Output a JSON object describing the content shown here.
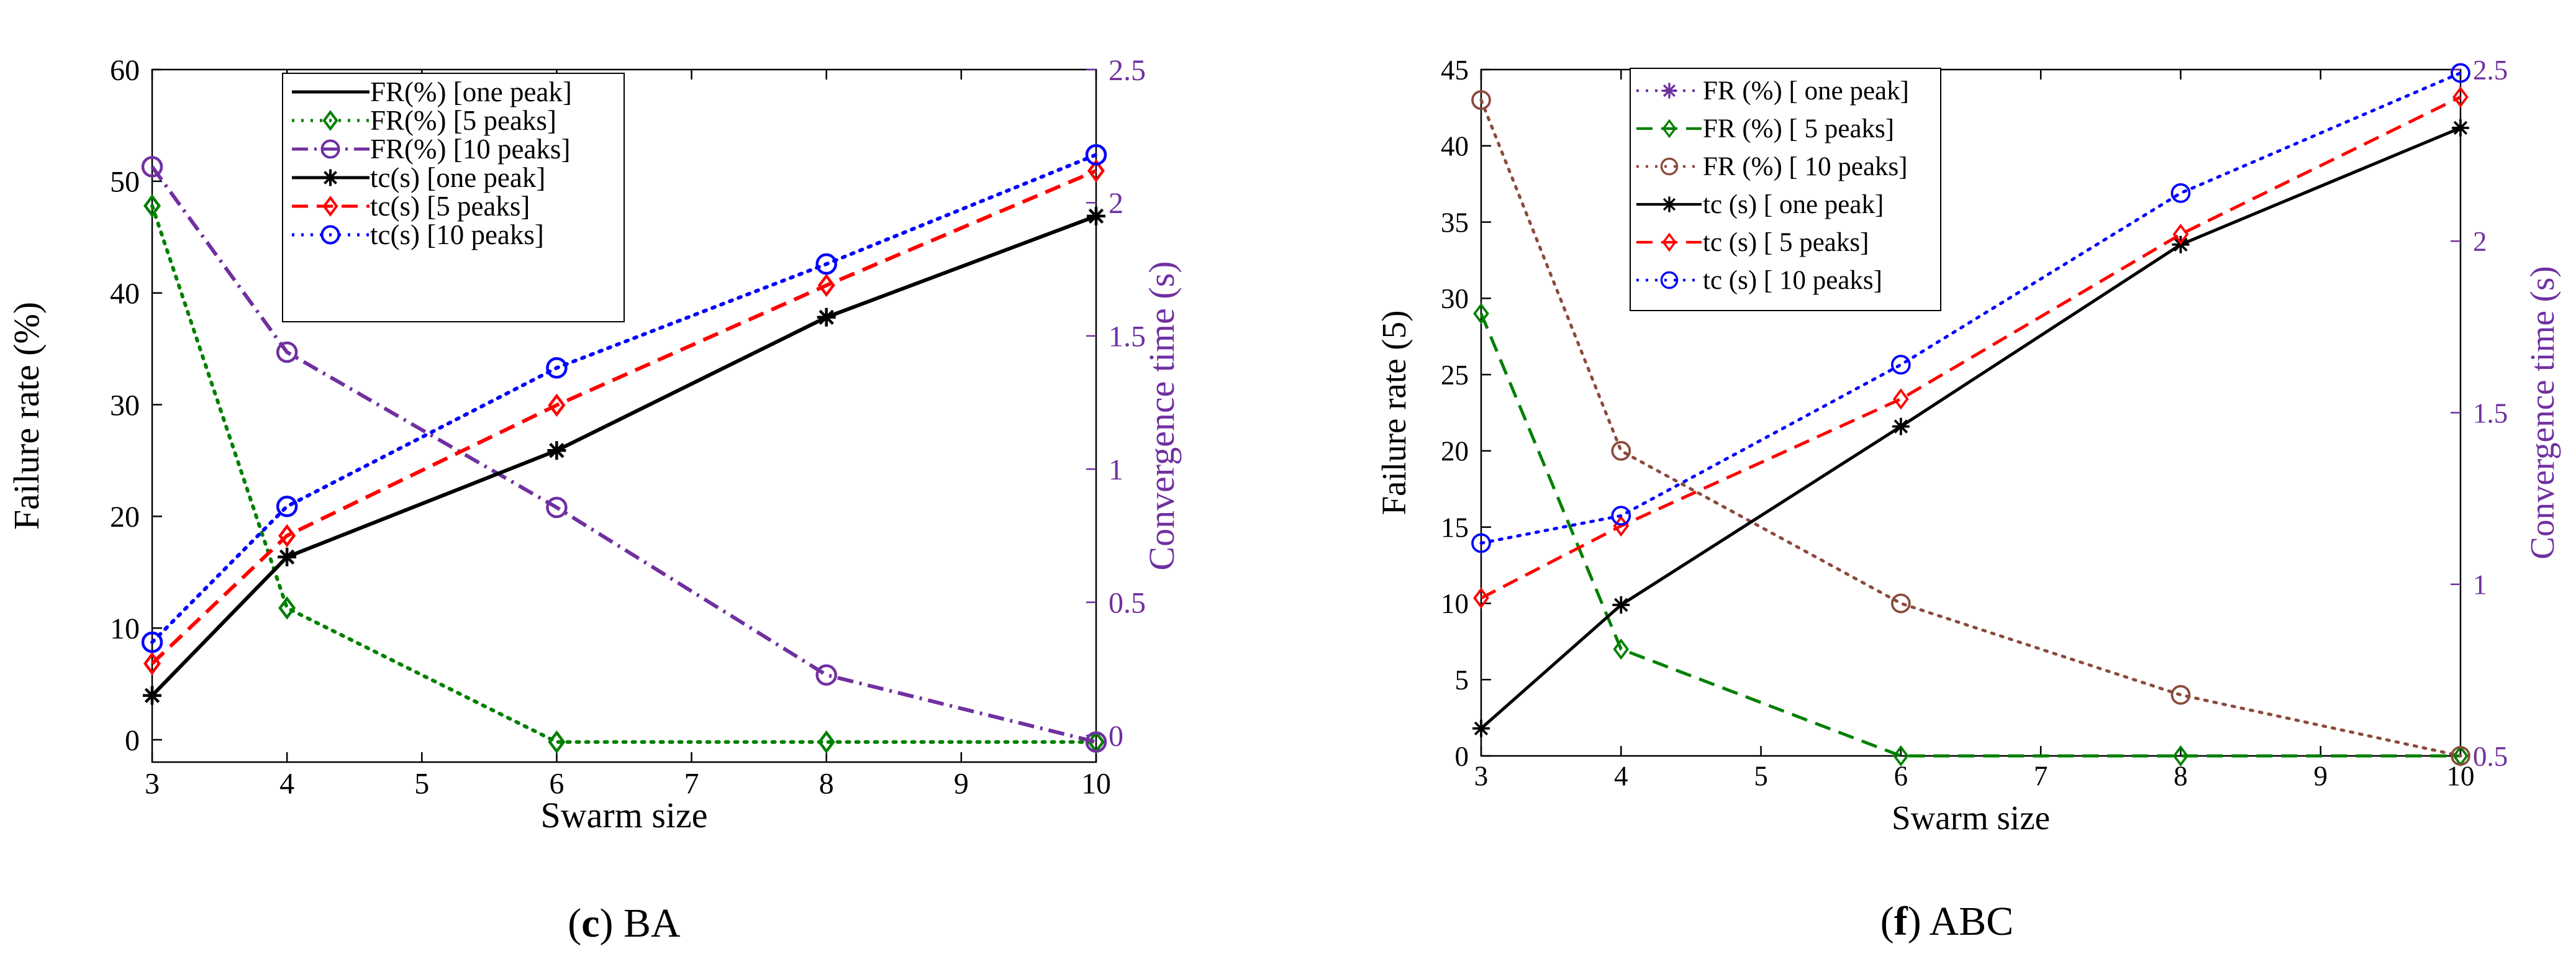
{
  "chart_data": [
    {
      "type": "line",
      "panel_letter": "c",
      "caption_text": " BA",
      "xlabel": "Swarm size",
      "ylabel": "Failure rate (%)",
      "y2label": "Convergence time (s)",
      "xlim": [
        3,
        10
      ],
      "ylim": [
        -2,
        60
      ],
      "y2lim": [
        -0.1,
        2.5
      ],
      "xticks": [
        "3",
        "4",
        "5",
        "6",
        "7",
        "8",
        "9",
        "10"
      ],
      "yticks": [
        "0",
        "10",
        "20",
        "30",
        "40",
        "50",
        "60"
      ],
      "y2ticks": [
        "0",
        "0.5",
        "1",
        "1.5",
        "2",
        "2.5"
      ],
      "legend_position": "top-center",
      "series": [
        {
          "name": "FR(%) [one peak]",
          "axis": "left",
          "x": [],
          "values": [],
          "color": "#000000",
          "dash": "solid",
          "marker": "none",
          "legend_marker": false
        },
        {
          "name": "FR(%) [5 peaks]",
          "axis": "left",
          "x": [
            3,
            4,
            6,
            8,
            10
          ],
          "values": [
            47.8,
            11.8,
            -0.2,
            -0.2,
            -0.2
          ],
          "color": "#008000",
          "dash": "dot",
          "marker": "diamond"
        },
        {
          "name": "FR(%) [10 peaks]",
          "axis": "left",
          "x": [
            3,
            4,
            6,
            8,
            10
          ],
          "values": [
            51.3,
            34.7,
            20.8,
            5.8,
            -0.2
          ],
          "color": "#7030a0",
          "dash": "dashdot",
          "marker": "circle"
        },
        {
          "name": "tc(s) [one peak]",
          "axis": "right",
          "x": [
            3,
            4,
            6,
            8,
            10
          ],
          "values": [
            0.15,
            0.67,
            1.07,
            1.57,
            1.95
          ],
          "color": "#000000",
          "dash": "solid",
          "marker": "star"
        },
        {
          "name": "tc(s) [5 peaks]",
          "axis": "right",
          "x": [
            3,
            4,
            6,
            8,
            10
          ],
          "values": [
            0.27,
            0.75,
            1.24,
            1.69,
            2.12
          ],
          "color": "#ff0000",
          "dash": "dash",
          "marker": "diamond"
        },
        {
          "name": "tc(s) [10 peaks]",
          "axis": "right",
          "x": [
            3,
            4,
            6,
            8,
            10
          ],
          "values": [
            0.35,
            0.86,
            1.38,
            1.77,
            2.18
          ],
          "color": "#0000ff",
          "dash": "dot",
          "marker": "circle"
        }
      ]
    },
    {
      "type": "line",
      "panel_letter": "f",
      "caption_text": " ABC",
      "xlabel": "Swarm size",
      "ylabel": "Failure rate (5)",
      "y2label": "Convergence time (s)",
      "xlim": [
        3,
        10
      ],
      "ylim": [
        0,
        45
      ],
      "y2lim": [
        0.5,
        2.5
      ],
      "xticks": [
        "3",
        "4",
        "5",
        "6",
        "7",
        "8",
        "9",
        "10"
      ],
      "yticks": [
        "0",
        "5",
        "10",
        "15",
        "20",
        "25",
        "30",
        "35",
        "40",
        "45"
      ],
      "y2ticks": [
        "0.5",
        "1",
        "1.5",
        "2",
        "2.5"
      ],
      "legend_position": "top-left",
      "series": [
        {
          "name": "FR (%) [ one peak]",
          "axis": "left",
          "x": [],
          "values": [],
          "color": "#7030a0",
          "dash": "dot",
          "marker": "star"
        },
        {
          "name": "FR (%) [ 5 peaks]",
          "axis": "left",
          "x": [
            3,
            4,
            6,
            8,
            10
          ],
          "values": [
            29,
            7,
            0,
            0,
            0
          ],
          "color": "#008000",
          "dash": "dash",
          "marker": "diamond"
        },
        {
          "name": "FR (%) [ 10 peaks]",
          "axis": "left",
          "x": [
            3,
            4,
            6,
            8,
            10
          ],
          "values": [
            43,
            20,
            10,
            4,
            0
          ],
          "color": "#8b4a3c",
          "dash": "dot",
          "marker": "circle"
        },
        {
          "name": "tc (s) [ one peak]",
          "axis": "right",
          "x": [
            3,
            4,
            6,
            8,
            10
          ],
          "values": [
            0.58,
            0.94,
            1.46,
            1.99,
            2.33
          ],
          "color": "#000000",
          "dash": "solid",
          "marker": "star"
        },
        {
          "name": "tc (s) [ 5 peaks]",
          "axis": "right",
          "x": [
            3,
            4,
            6,
            8,
            10
          ],
          "values": [
            0.96,
            1.17,
            1.54,
            2.02,
            2.42
          ],
          "color": "#ff0000",
          "dash": "dash",
          "marker": "diamond"
        },
        {
          "name": "tc (s) [ 10 peaks]",
          "axis": "right",
          "x": [
            3,
            4,
            6,
            8,
            10
          ],
          "values": [
            1.12,
            1.2,
            1.64,
            2.14,
            2.49
          ],
          "color": "#0000ff",
          "dash": "dot",
          "marker": "circle"
        }
      ]
    }
  ]
}
